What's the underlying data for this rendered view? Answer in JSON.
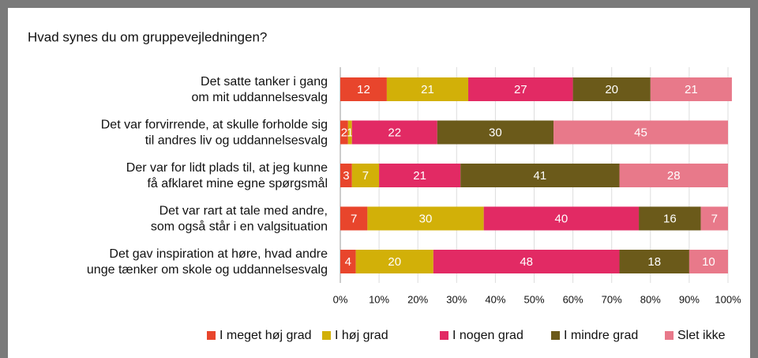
{
  "chart_data": {
    "type": "stacked-bar-horizontal",
    "title": "Hvad synes du om gruppevejledningen?",
    "categories": [
      [
        "Det satte tanker i gang",
        "om mit uddannelsesvalg"
      ],
      [
        "Det var forvirrende, at skulle forholde sig",
        "til andres liv og uddannelsesvalg"
      ],
      [
        "Der var for lidt plads til, at jeg kunne",
        "få afklaret mine egne spørgsmål"
      ],
      [
        "Det var rart at tale med andre,",
        "som også står i en valgsituation"
      ],
      [
        "Det gav inspiration at høre, hvad andre",
        "unge tænker om skole og uddannelsesvalg"
      ]
    ],
    "series": [
      {
        "name": "I meget høj grad",
        "color": "#e8452c",
        "values": [
          12,
          2,
          3,
          7,
          4
        ]
      },
      {
        "name": "I høj grad",
        "color": "#d2b008",
        "values": [
          21,
          1,
          7,
          30,
          20
        ]
      },
      {
        "name": "I nogen grad",
        "color": "#e22a64",
        "values": [
          27,
          22,
          21,
          40,
          48
        ]
      },
      {
        "name": "I mindre grad",
        "color": "#6b5a1a",
        "values": [
          20,
          30,
          41,
          16,
          18
        ]
      },
      {
        "name": "Slet ikke",
        "color": "#e8798a",
        "values": [
          21,
          45,
          28,
          7,
          10
        ]
      }
    ],
    "xlim": [
      0,
      100
    ],
    "xticks": [
      {
        "value": 0,
        "label": "0%"
      },
      {
        "value": 10,
        "label": "10%"
      },
      {
        "value": 20,
        "label": "20%"
      },
      {
        "value": 30,
        "label": "30%"
      },
      {
        "value": 40,
        "label": "40%"
      },
      {
        "value": 50,
        "label": "50%"
      },
      {
        "value": 60,
        "label": "60%"
      },
      {
        "value": 70,
        "label": "70%"
      },
      {
        "value": 80,
        "label": "80%"
      },
      {
        "value": 90,
        "label": "90%"
      },
      {
        "value": 100,
        "label": "100%"
      }
    ],
    "grid": true,
    "legend": "bottom"
  }
}
